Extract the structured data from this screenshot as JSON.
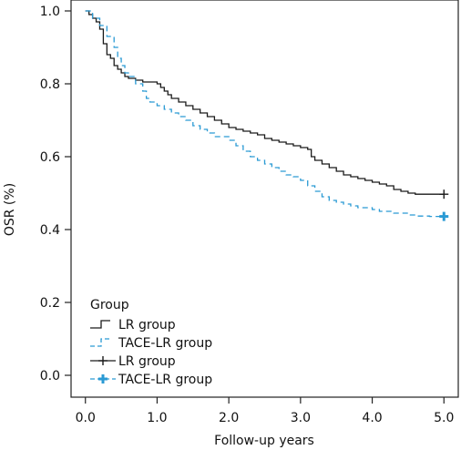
{
  "chart_data": {
    "type": "line",
    "chart_kind": "kaplan-meier step curve",
    "xlabel": "Follow-up years",
    "ylabel": "OSR (%)",
    "xlim": [
      -0.2,
      5.2
    ],
    "ylim": [
      -0.06,
      1.03
    ],
    "x_ticks": [
      0,
      1,
      2,
      3,
      4,
      5
    ],
    "x_tick_labels": [
      "0.0",
      "1.0",
      "2.0",
      "3.0",
      "4.0",
      "5.0"
    ],
    "y_ticks": [
      0,
      0.2,
      0.4,
      0.6,
      0.8,
      1.0
    ],
    "y_tick_labels": [
      "0.0",
      "0.2",
      "0.4",
      "0.6",
      "0.8",
      "1.0"
    ],
    "grid": false,
    "legend": {
      "title": "Group",
      "placement": "bottom-left inside plot",
      "entries": [
        {
          "label": "LR group",
          "series": 0,
          "style": "step"
        },
        {
          "label": "TACE-LR group",
          "series": 1,
          "style": "step"
        },
        {
          "label": "LR group",
          "series": 0,
          "style": "censor"
        },
        {
          "label": "TACE-LR group",
          "series": 1,
          "style": "censor"
        }
      ]
    },
    "series": [
      {
        "name": "LR group",
        "color": "#1a1a1a",
        "dash": "solid",
        "x": [
          0,
          0.05,
          0.1,
          0.15,
          0.2,
          0.25,
          0.3,
          0.35,
          0.4,
          0.45,
          0.5,
          0.55,
          0.6,
          0.7,
          0.8,
          1.0,
          1.05,
          1.1,
          1.15,
          1.2,
          1.3,
          1.4,
          1.5,
          1.6,
          1.7,
          1.8,
          1.9,
          2.0,
          2.1,
          2.2,
          2.3,
          2.4,
          2.5,
          2.6,
          2.7,
          2.8,
          2.9,
          3.0,
          3.1,
          3.15,
          3.2,
          3.3,
          3.4,
          3.5,
          3.6,
          3.7,
          3.8,
          3.9,
          4.0,
          4.1,
          4.2,
          4.3,
          4.4,
          4.5,
          4.6,
          5.0
        ],
        "y": [
          1.0,
          0.99,
          0.98,
          0.97,
          0.95,
          0.91,
          0.88,
          0.87,
          0.85,
          0.84,
          0.83,
          0.82,
          0.815,
          0.81,
          0.805,
          0.8,
          0.79,
          0.78,
          0.77,
          0.76,
          0.75,
          0.74,
          0.73,
          0.72,
          0.71,
          0.7,
          0.69,
          0.68,
          0.675,
          0.67,
          0.665,
          0.66,
          0.65,
          0.645,
          0.64,
          0.635,
          0.63,
          0.625,
          0.62,
          0.6,
          0.59,
          0.58,
          0.57,
          0.56,
          0.55,
          0.545,
          0.54,
          0.535,
          0.53,
          0.525,
          0.52,
          0.51,
          0.505,
          0.5,
          0.497,
          0.497
        ],
        "censor": [
          {
            "x": 5.0,
            "y": 0.497
          }
        ]
      },
      {
        "name": "TACE-LR group",
        "color": "#2a9ad4",
        "dash": "dashed",
        "x": [
          0,
          0.1,
          0.2,
          0.3,
          0.4,
          0.45,
          0.5,
          0.55,
          0.6,
          0.7,
          0.8,
          0.85,
          0.9,
          1.0,
          1.1,
          1.2,
          1.3,
          1.4,
          1.5,
          1.6,
          1.7,
          1.8,
          2.0,
          2.1,
          2.2,
          2.3,
          2.4,
          2.5,
          2.6,
          2.7,
          2.8,
          2.9,
          3.0,
          3.1,
          3.2,
          3.3,
          3.4,
          3.5,
          3.6,
          3.7,
          3.8,
          4.0,
          4.1,
          4.3,
          4.5,
          4.6,
          4.8,
          5.0
        ],
        "y": [
          1.0,
          0.98,
          0.96,
          0.93,
          0.9,
          0.87,
          0.85,
          0.83,
          0.82,
          0.8,
          0.78,
          0.76,
          0.75,
          0.74,
          0.73,
          0.72,
          0.71,
          0.7,
          0.685,
          0.675,
          0.665,
          0.655,
          0.645,
          0.63,
          0.615,
          0.6,
          0.59,
          0.58,
          0.57,
          0.56,
          0.55,
          0.545,
          0.535,
          0.52,
          0.505,
          0.49,
          0.48,
          0.475,
          0.47,
          0.465,
          0.46,
          0.455,
          0.45,
          0.445,
          0.44,
          0.437,
          0.436,
          0.436
        ],
        "censor": [
          {
            "x": 5.0,
            "y": 0.436
          }
        ]
      }
    ]
  }
}
